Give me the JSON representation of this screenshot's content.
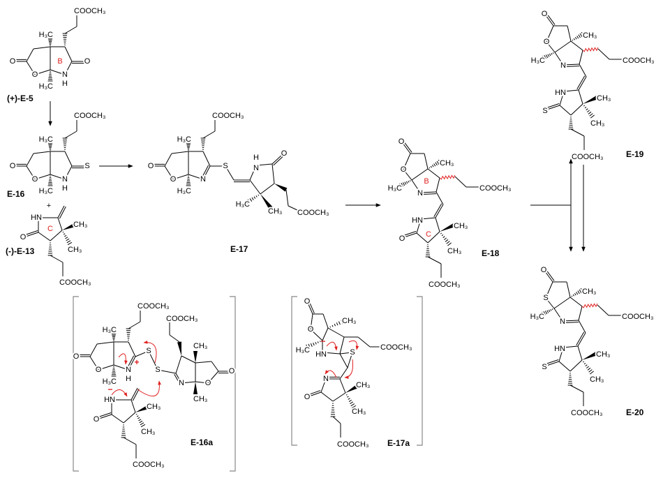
{
  "atoms": {
    "ester": "COOCH₃",
    "me_left": "H₃C",
    "me_right": "CH₃",
    "O": "O",
    "N": "N",
    "H": "H",
    "HN": "HN",
    "S": "S",
    "plus": "+",
    "minus": "−",
    "ring_B": "B",
    "ring_C": "C"
  },
  "compounds": {
    "e5": "(+)-E-5",
    "e16": "E-16",
    "e13": "(-)-E-13",
    "e17": "E-17",
    "e18": "E-18",
    "e19": "E-19",
    "e20": "E-20",
    "e16a": "E-16a",
    "e17a": "E-17a"
  },
  "colors": {
    "bond": "#000000",
    "mechanism_arrow": "#e02020",
    "bracket": "#888888",
    "ring_label": "#e02020"
  }
}
